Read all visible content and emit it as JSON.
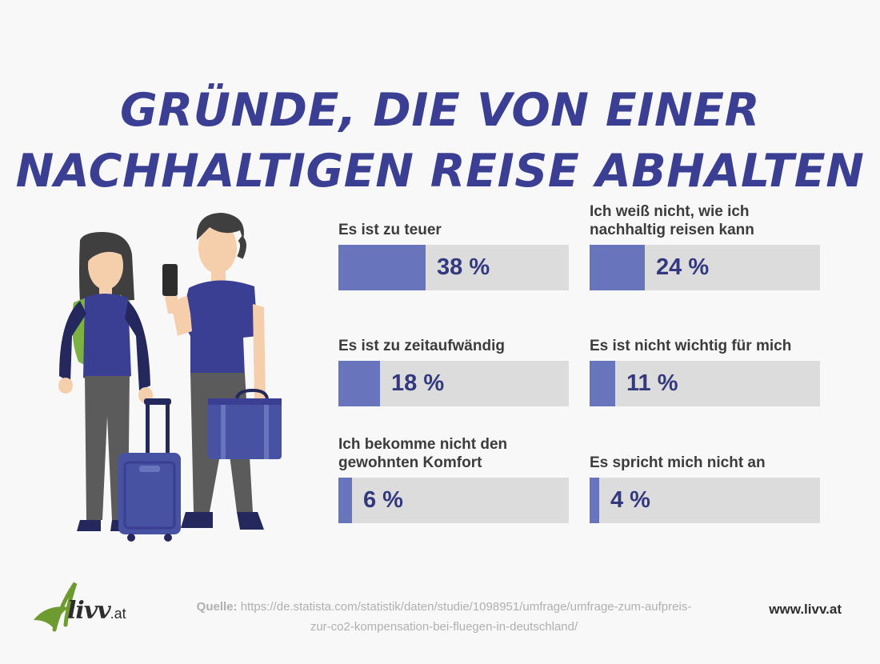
{
  "title": {
    "line1": "GRÜNDE, DIE VON EINER",
    "line2": "NACHHALTIGEN REISE ABHALTEN"
  },
  "chart_data": {
    "type": "bar",
    "title": "GRÜNDE, DIE VON EINER NACHHALTIGEN REISE ABHALTEN",
    "unit": "%",
    "xlim": [
      0,
      100
    ],
    "categories": [
      "Es ist zu teuer",
      "Ich weiß nicht, wie ich nachhaltig reisen kann",
      "Es ist zu zeitaufwändig",
      "Es ist nicht wichtig für mich",
      "Ich bekomme nicht den gewohnten Komfort",
      "Es spricht mich nicht an"
    ],
    "values": [
      38,
      24,
      18,
      11,
      6,
      4
    ],
    "items": [
      {
        "label_lines": [
          "Es ist zu teuer"
        ],
        "value": 38,
        "display": "38 %"
      },
      {
        "label_lines": [
          "Ich weiß nicht, wie ich",
          "nachhaltig reisen kann"
        ],
        "value": 24,
        "display": "24 %"
      },
      {
        "label_lines": [
          "Es ist zu zeitaufwändig"
        ],
        "value": 18,
        "display": "18 %"
      },
      {
        "label_lines": [
          "Es ist nicht wichtig für mich"
        ],
        "value": 11,
        "display": "11 %"
      },
      {
        "label_lines": [
          "Ich bekomme nicht den",
          "gewohnten Komfort"
        ],
        "value": 6,
        "display": "6 %"
      },
      {
        "label_lines": [
          "Es spricht mich nicht an"
        ],
        "value": 4,
        "display": "4 %"
      }
    ]
  },
  "source": {
    "prefix": "Quelle:",
    "url_line1": "https://de.statista.com/statistik/daten/studie/1098951/umfrage/umfrage-zum-aufpreis-",
    "url_line2": "zur-co2-kompensation-bei-fluegen-in-deutschland/"
  },
  "logo": {
    "name": "livv",
    "suffix": ".at"
  },
  "website": "www.livv.at",
  "colors": {
    "title": "#3a3f93",
    "bar_fill": "#6875bd",
    "bar_track": "#dcdcdc",
    "value_text": "#33387f",
    "leaf_green": "#6e9b2f"
  }
}
